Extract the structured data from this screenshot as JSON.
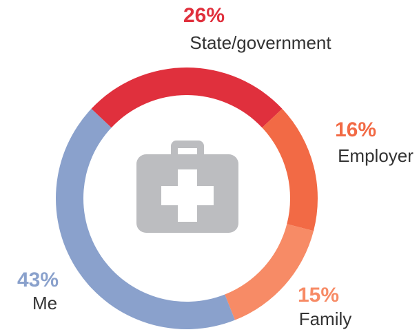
{
  "chart_data": {
    "type": "donut",
    "categories": [
      "State/government",
      "Employer",
      "Family",
      "Me"
    ],
    "values": [
      26,
      16,
      15,
      43
    ],
    "value_labels": [
      "26%",
      "16%",
      "15%",
      "43%"
    ],
    "colors": [
      "#e0303d",
      "#f26a45",
      "#f78b66",
      "#8aa1cc"
    ]
  }
}
